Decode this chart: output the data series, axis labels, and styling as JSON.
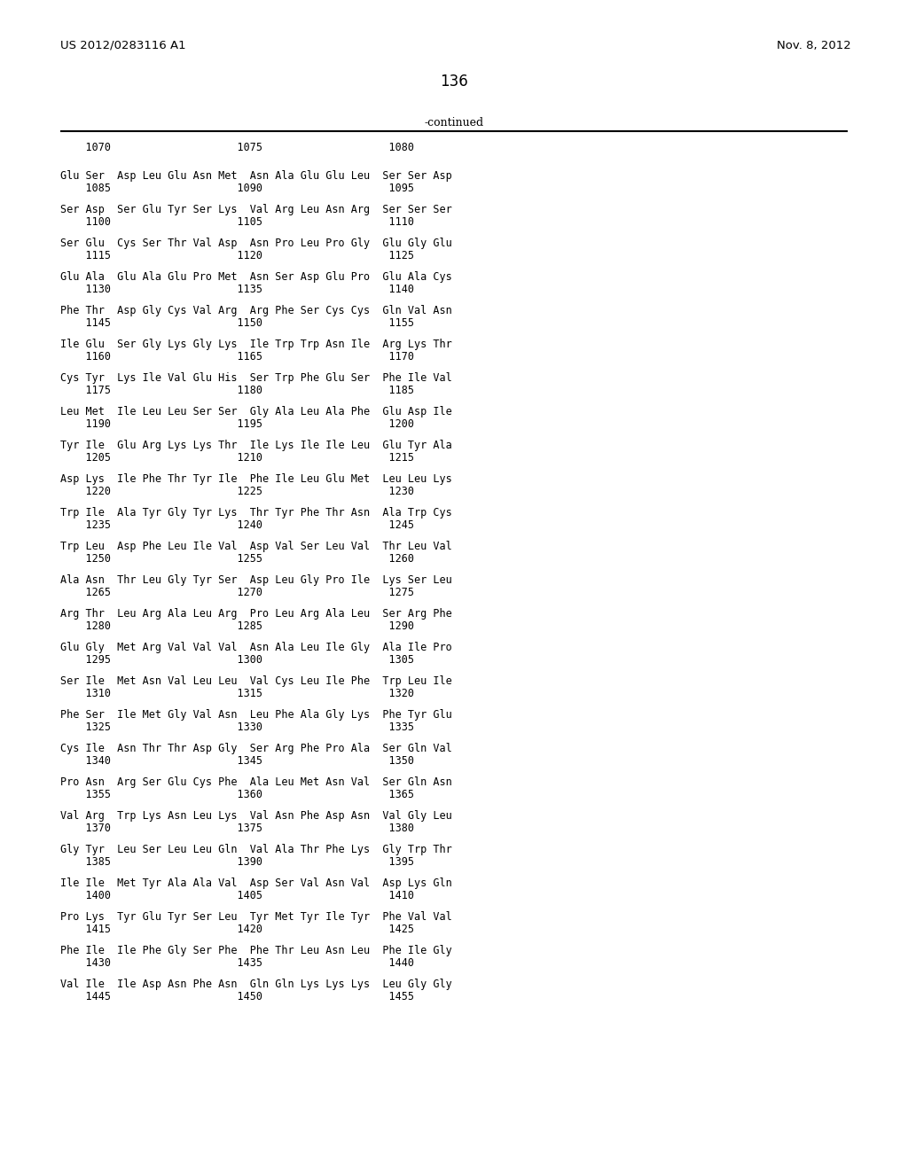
{
  "header_left": "US 2012/0283116 A1",
  "header_right": "Nov. 8, 2012",
  "page_number": "136",
  "continued_label": "-continued",
  "background_color": "#ffffff",
  "text_color": "#000000",
  "sequence_lines": [
    [
      "Glu Ser  Asp Leu Glu Asn Met  Asn Ala Glu Glu Leu  Ser Ser Asp",
      "    1085                    1090                    1095"
    ],
    [
      "Ser Asp  Ser Glu Tyr Ser Lys  Val Arg Leu Asn Arg  Ser Ser Ser",
      "    1100                    1105                    1110"
    ],
    [
      "Ser Glu  Cys Ser Thr Val Asp  Asn Pro Leu Pro Gly  Glu Gly Glu",
      "    1115                    1120                    1125"
    ],
    [
      "Glu Ala  Glu Ala Glu Pro Met  Asn Ser Asp Glu Pro  Glu Ala Cys",
      "    1130                    1135                    1140"
    ],
    [
      "Phe Thr  Asp Gly Cys Val Arg  Arg Phe Ser Cys Cys  Gln Val Asn",
      "    1145                    1150                    1155"
    ],
    [
      "Ile Glu  Ser Gly Lys Gly Lys  Ile Trp Trp Asn Ile  Arg Lys Thr",
      "    1160                    1165                    1170"
    ],
    [
      "Cys Tyr  Lys Ile Val Glu His  Ser Trp Phe Glu Ser  Phe Ile Val",
      "    1175                    1180                    1185"
    ],
    [
      "Leu Met  Ile Leu Leu Ser Ser  Gly Ala Leu Ala Phe  Glu Asp Ile",
      "    1190                    1195                    1200"
    ],
    [
      "Tyr Ile  Glu Arg Lys Lys Thr  Ile Lys Ile Ile Leu  Glu Tyr Ala",
      "    1205                    1210                    1215"
    ],
    [
      "Asp Lys  Ile Phe Thr Tyr Ile  Phe Ile Leu Glu Met  Leu Leu Lys",
      "    1220                    1225                    1230"
    ],
    [
      "Trp Ile  Ala Tyr Gly Tyr Lys  Thr Tyr Phe Thr Asn  Ala Trp Cys",
      "    1235                    1240                    1245"
    ],
    [
      "Trp Leu  Asp Phe Leu Ile Val  Asp Val Ser Leu Val  Thr Leu Val",
      "    1250                    1255                    1260"
    ],
    [
      "Ala Asn  Thr Leu Gly Tyr Ser  Asp Leu Gly Pro Ile  Lys Ser Leu",
      "    1265                    1270                    1275"
    ],
    [
      "Arg Thr  Leu Arg Ala Leu Arg  Pro Leu Arg Ala Leu  Ser Arg Phe",
      "    1280                    1285                    1290"
    ],
    [
      "Glu Gly  Met Arg Val Val Val  Asn Ala Leu Ile Gly  Ala Ile Pro",
      "    1295                    1300                    1305"
    ],
    [
      "Ser Ile  Met Asn Val Leu Leu  Val Cys Leu Ile Phe  Trp Leu Ile",
      "    1310                    1315                    1320"
    ],
    [
      "Phe Ser  Ile Met Gly Val Asn  Leu Phe Ala Gly Lys  Phe Tyr Glu",
      "    1325                    1330                    1335"
    ],
    [
      "Cys Ile  Asn Thr Thr Asp Gly  Ser Arg Phe Pro Ala  Ser Gln Val",
      "    1340                    1345                    1350"
    ],
    [
      "Pro Asn  Arg Ser Glu Cys Phe  Ala Leu Met Asn Val  Ser Gln Asn",
      "    1355                    1360                    1365"
    ],
    [
      "Val Arg  Trp Lys Asn Leu Lys  Val Asn Phe Asp Asn  Val Gly Leu",
      "    1370                    1375                    1380"
    ],
    [
      "Gly Tyr  Leu Ser Leu Leu Gln  Val Ala Thr Phe Lys  Gly Trp Thr",
      "    1385                    1390                    1395"
    ],
    [
      "Ile Ile  Met Tyr Ala Ala Val  Asp Ser Val Asn Val  Asp Lys Gln",
      "    1400                    1405                    1410"
    ],
    [
      "Pro Lys  Tyr Glu Tyr Ser Leu  Tyr Met Tyr Ile Tyr  Phe Val Val",
      "    1415                    1420                    1425"
    ],
    [
      "Phe Ile  Ile Phe Gly Ser Phe  Phe Thr Leu Asn Leu  Phe Ile Gly",
      "    1430                    1435                    1440"
    ],
    [
      "Val Ile  Ile Asp Asn Phe Asn  Gln Gln Lys Lys Lys  Leu Gly Gly",
      "    1445                    1450                    1455"
    ]
  ]
}
